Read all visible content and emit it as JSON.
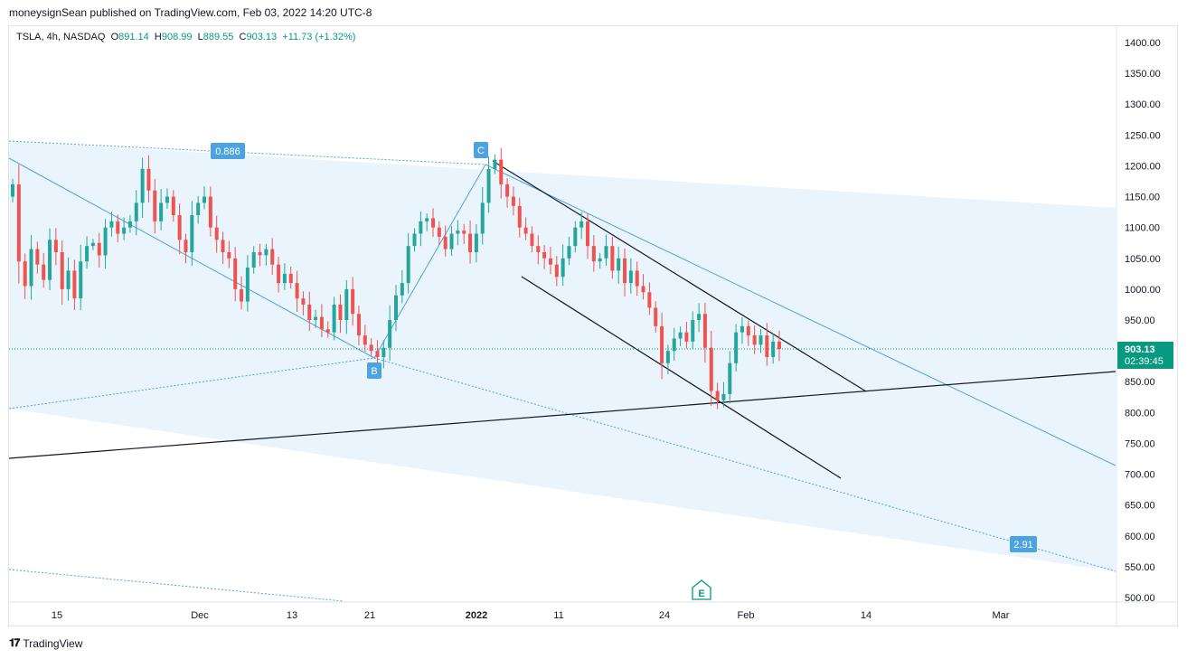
{
  "header": {
    "attribution": "moneysignSean published on TradingView.com, Feb 03, 2022 14:20 UTC-8"
  },
  "legend": {
    "symbol": "TSLA, 4h, NASDAQ",
    "open_label": "O",
    "open": "891.14",
    "high_label": "H",
    "high": "908.99",
    "low_label": "L",
    "low": "889.55",
    "close_label": "C",
    "close": "903.13",
    "change": "+11.73 (+1.32%)"
  },
  "price_tag": {
    "price": "903.13",
    "countdown": "02:39:45"
  },
  "footer": {
    "logo": "𝟏𝟕",
    "brand": "TradingView"
  },
  "colors": {
    "up": "#26a69a",
    "down": "#ef5350",
    "fib": "#4da3df",
    "fill": "#eaf4fc",
    "price": "#089981"
  },
  "chart_data": {
    "type": "candlestick",
    "ylim": [
      490,
      1430
    ],
    "y_ticks": [
      1400,
      1350,
      1300,
      1250,
      1200,
      1150,
      1100,
      1050,
      1000,
      950,
      900,
      850,
      800,
      750,
      700,
      650,
      600,
      550,
      500
    ],
    "x_ticks": [
      {
        "label": "15",
        "bold": false
      },
      {
        "label": "Dec",
        "bold": false
      },
      {
        "label": "13",
        "bold": false
      },
      {
        "label": "21",
        "bold": false
      },
      {
        "label": "2022",
        "bold": true
      },
      {
        "label": "11",
        "bold": false
      },
      {
        "label": "24",
        "bold": false
      },
      {
        "label": "Feb",
        "bold": false
      },
      {
        "label": "14",
        "bold": false
      },
      {
        "label": "Mar",
        "bold": false
      }
    ],
    "last_price": 903.13,
    "annotations": [
      {
        "label": "0.886",
        "value": 1230
      },
      {
        "label": "C",
        "value": 1208
      },
      {
        "label": "B",
        "value": 884
      },
      {
        "label": "2.91",
        "value": 582
      },
      {
        "label": "E",
        "kind": "earnings"
      }
    ],
    "closes": [
      1170,
      1045,
      1005,
      1065,
      1040,
      1015,
      1080,
      1060,
      1000,
      1030,
      985,
      1045,
      1070,
      1075,
      1055,
      1100,
      1110,
      1090,
      1100,
      1110,
      1140,
      1195,
      1160,
      1110,
      1140,
      1150,
      1120,
      1080,
      1060,
      1120,
      1140,
      1150,
      1100,
      1080,
      1060,
      1050,
      1000,
      980,
      1035,
      1060,
      1055,
      1065,
      1040,
      1010,
      1025,
      1010,
      985,
      975,
      950,
      955,
      935,
      930,
      975,
      950,
      1000,
      960,
      925,
      910,
      900,
      890,
      905,
      950,
      990,
      1010,
      1070,
      1090,
      1110,
      1115,
      1100,
      1085,
      1065,
      1090,
      1095,
      1090,
      1060,
      1090,
      1140,
      1195,
      1210,
      1170,
      1150,
      1135,
      1100,
      1090,
      1070,
      1060,
      1050,
      1040,
      1020,
      1050,
      1070,
      1100,
      1110,
      1070,
      1045,
      1050,
      1070,
      1030,
      1050,
      1010,
      1030,
      1005,
      995,
      970,
      940,
      880,
      900,
      920,
      930,
      915,
      950,
      960,
      905,
      835,
      820,
      830,
      880,
      930,
      940,
      925,
      910,
      925,
      890,
      915,
      903.13
    ]
  }
}
